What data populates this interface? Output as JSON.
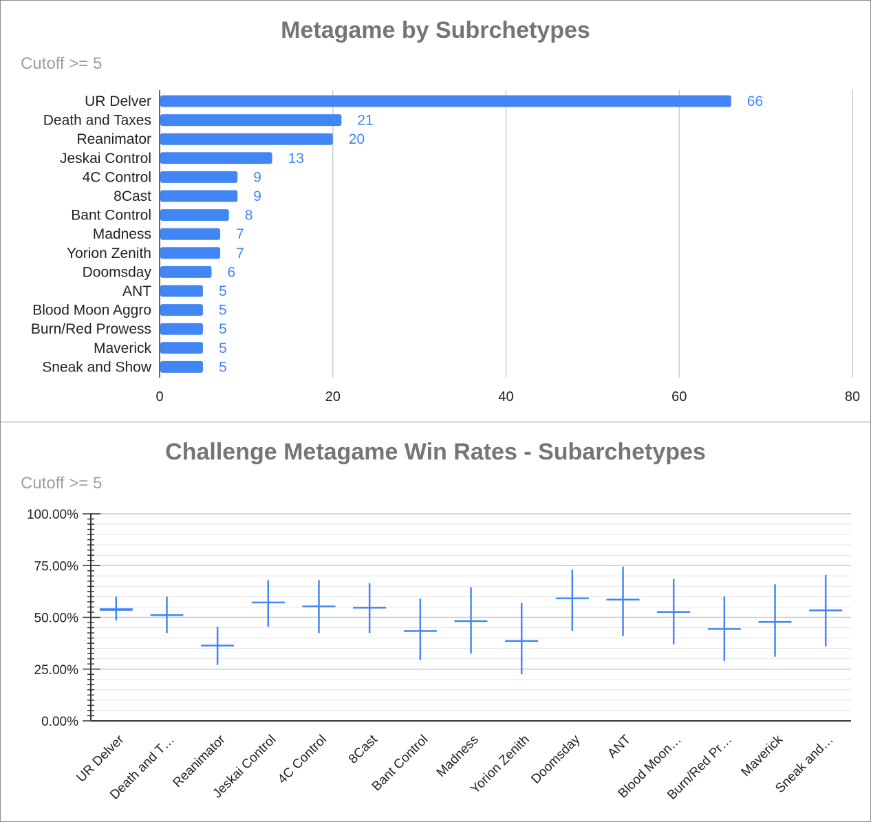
{
  "chart_data": [
    {
      "type": "bar",
      "orientation": "horizontal",
      "title": "Metagame by Subrchetypes",
      "subtitle": "Cutoff >= 5",
      "categories": [
        "UR Delver",
        "Death and Taxes",
        "Reanimator",
        "Jeskai Control",
        "4C Control",
        "8Cast",
        "Bant Control",
        "Madness",
        "Yorion Zenith",
        "Doomsday",
        "ANT",
        "Blood Moon Aggro",
        "Burn/Red Prowess",
        "Maverick",
        "Sneak and Show"
      ],
      "values": [
        66,
        21,
        20,
        13,
        9,
        9,
        8,
        7,
        7,
        6,
        5,
        5,
        5,
        5,
        5
      ],
      "xlim": [
        0,
        80
      ],
      "xticks": [
        "0",
        "20",
        "40",
        "60",
        "80"
      ],
      "grid": true,
      "color": "#4285f4"
    },
    {
      "type": "candlestick",
      "title": "Challenge Metagame Win Rates - Subarchetypes",
      "subtitle": "Cutoff >= 5",
      "categories": [
        "UR Delver",
        "Death and T…",
        "Reanimator",
        "Jeskai Control",
        "4C Control",
        "8Cast",
        "Bant Control",
        "Madness",
        "Yorion Zenith",
        "Doomsday",
        "ANT",
        "Blood Moon…",
        "Burn/Red Pr…",
        "Maverick",
        "Sneak and…"
      ],
      "series": [
        {
          "name": "low",
          "values": [
            48.5,
            42.5,
            27.0,
            45.5,
            42.5,
            42.5,
            29.5,
            32.5,
            22.5,
            43.5,
            41.0,
            37.0,
            29.0,
            31.0,
            36.0
          ]
        },
        {
          "name": "open",
          "values": [
            53.2,
            50.9,
            36.2,
            56.8,
            55.0,
            54.6,
            43.2,
            48.0,
            38.4,
            59.0,
            58.4,
            52.4,
            44.2,
            47.8,
            53.2
          ]
        },
        {
          "name": "close",
          "values": [
            54.4,
            51.5,
            36.8,
            57.6,
            55.7,
            55.1,
            43.8,
            48.6,
            39.0,
            59.6,
            59.0,
            53.0,
            44.8,
            48.2,
            53.8
          ]
        },
        {
          "name": "high",
          "values": [
            60.0,
            60.0,
            45.5,
            68.0,
            68.0,
            66.5,
            59.0,
            64.5,
            57.0,
            73.0,
            74.5,
            68.5,
            60.0,
            66.0,
            70.5
          ]
        }
      ],
      "ylim": [
        0,
        100
      ],
      "yticks": [
        "0.00%",
        "25.00%",
        "50.00%",
        "75.00%",
        "100.00%"
      ],
      "grid": true,
      "color": "#4285f4"
    }
  ]
}
